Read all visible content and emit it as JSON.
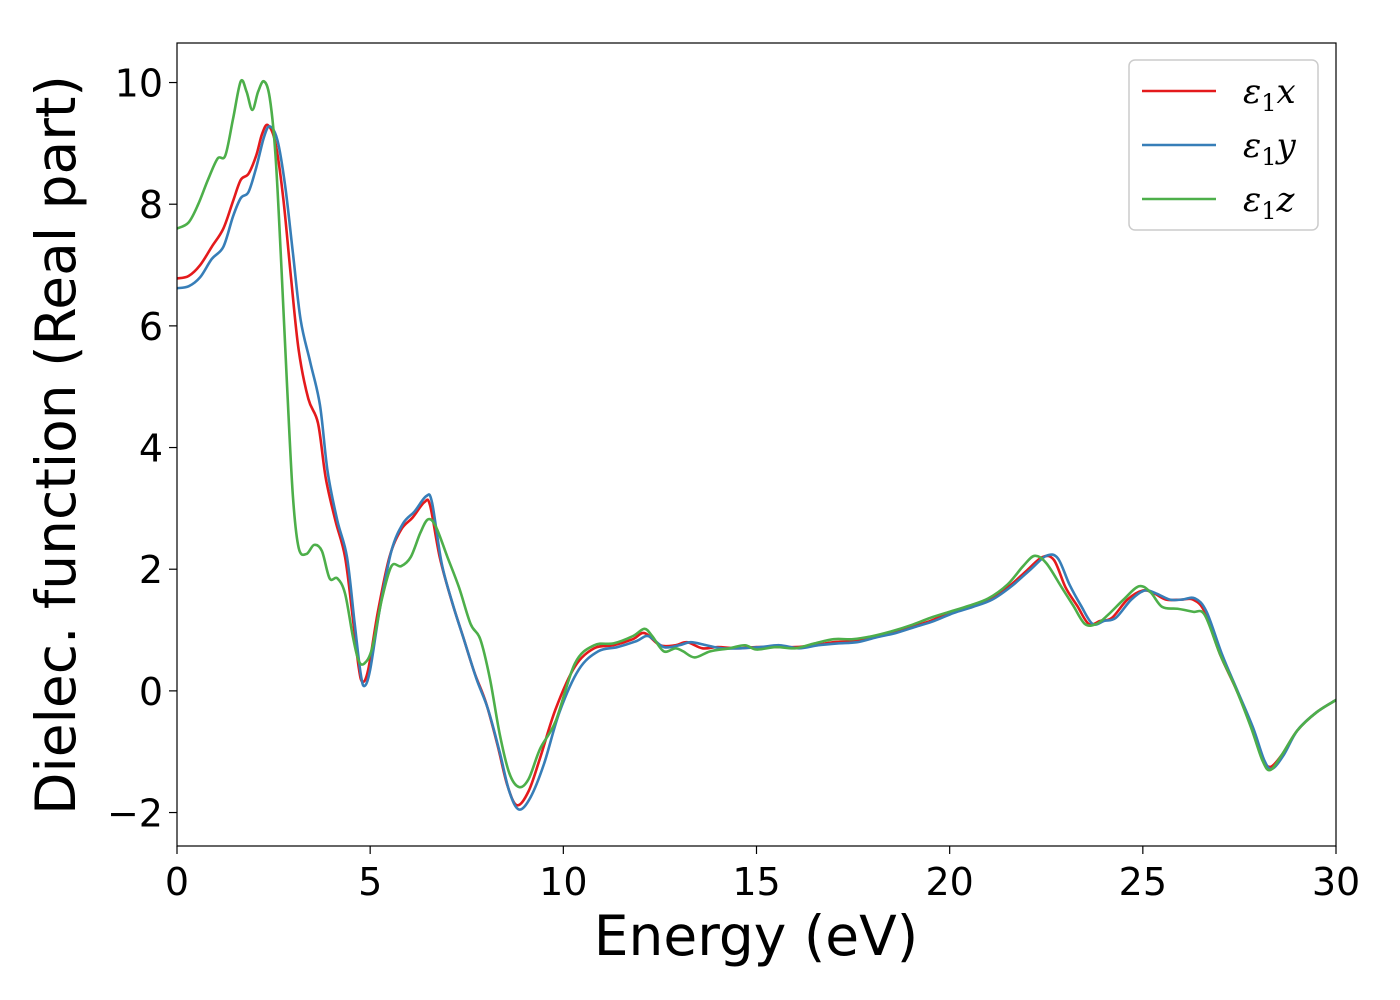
{
  "chart_data": {
    "type": "line",
    "xlabel": "Energy (eV)",
    "ylabel": "Dielec. function (Real part)",
    "xlim": [
      0,
      30
    ],
    "ylim": [
      -2.55,
      10.65
    ],
    "xticks": [
      0,
      5,
      10,
      15,
      20,
      25,
      30
    ],
    "yticks": [
      -2,
      0,
      2,
      4,
      6,
      8,
      10
    ],
    "xtick_labels": [
      "0",
      "5",
      "10",
      "15",
      "20",
      "25",
      "30"
    ],
    "ytick_labels": [
      "−2",
      "0",
      "2",
      "4",
      "6",
      "8",
      "10"
    ],
    "grid": false,
    "legend_position": "top-right",
    "series": [
      {
        "name": "ε₁x",
        "label_main": "ε",
        "label_sub": "1",
        "label_var": "x",
        "color": "#e41a1c",
        "points": [
          [
            0,
            6.78
          ],
          [
            0.3,
            6.82
          ],
          [
            0.6,
            7.0
          ],
          [
            0.9,
            7.3
          ],
          [
            1.2,
            7.6
          ],
          [
            1.45,
            8.05
          ],
          [
            1.65,
            8.4
          ],
          [
            1.85,
            8.5
          ],
          [
            2.05,
            8.8
          ],
          [
            2.2,
            9.15
          ],
          [
            2.35,
            9.3
          ],
          [
            2.55,
            9.0
          ],
          [
            2.75,
            8.1
          ],
          [
            2.95,
            6.8
          ],
          [
            3.15,
            5.6
          ],
          [
            3.4,
            4.8
          ],
          [
            3.65,
            4.4
          ],
          [
            3.85,
            3.5
          ],
          [
            4.1,
            2.8
          ],
          [
            4.35,
            2.2
          ],
          [
            4.55,
            1.2
          ],
          [
            4.7,
            0.4
          ],
          [
            4.8,
            0.15
          ],
          [
            4.95,
            0.35
          ],
          [
            5.2,
            1.3
          ],
          [
            5.5,
            2.2
          ],
          [
            5.8,
            2.65
          ],
          [
            6.1,
            2.85
          ],
          [
            6.4,
            3.1
          ],
          [
            6.55,
            3.05
          ],
          [
            6.8,
            2.2
          ],
          [
            7.1,
            1.5
          ],
          [
            7.4,
            0.9
          ],
          [
            7.7,
            0.3
          ],
          [
            8.0,
            -0.2
          ],
          [
            8.3,
            -0.9
          ],
          [
            8.55,
            -1.55
          ],
          [
            8.8,
            -1.88
          ],
          [
            9.1,
            -1.65
          ],
          [
            9.4,
            -1.1
          ],
          [
            9.8,
            -0.3
          ],
          [
            10.3,
            0.4
          ],
          [
            10.8,
            0.7
          ],
          [
            11.3,
            0.75
          ],
          [
            11.8,
            0.85
          ],
          [
            12.1,
            0.95
          ],
          [
            12.5,
            0.75
          ],
          [
            12.9,
            0.75
          ],
          [
            13.2,
            0.8
          ],
          [
            13.6,
            0.7
          ],
          [
            14.0,
            0.72
          ],
          [
            14.5,
            0.7
          ],
          [
            15.0,
            0.72
          ],
          [
            15.5,
            0.72
          ],
          [
            16.0,
            0.72
          ],
          [
            16.5,
            0.75
          ],
          [
            17.0,
            0.8
          ],
          [
            17.5,
            0.82
          ],
          [
            18.0,
            0.88
          ],
          [
            18.5,
            0.95
          ],
          [
            19.0,
            1.05
          ],
          [
            19.5,
            1.15
          ],
          [
            20.0,
            1.28
          ],
          [
            20.5,
            1.38
          ],
          [
            21.0,
            1.5
          ],
          [
            21.5,
            1.7
          ],
          [
            22.0,
            1.98
          ],
          [
            22.4,
            2.2
          ],
          [
            22.7,
            2.15
          ],
          [
            23.0,
            1.7
          ],
          [
            23.3,
            1.4
          ],
          [
            23.6,
            1.1
          ],
          [
            23.9,
            1.15
          ],
          [
            24.2,
            1.2
          ],
          [
            24.6,
            1.5
          ],
          [
            25.0,
            1.65
          ],
          [
            25.3,
            1.6
          ],
          [
            25.6,
            1.5
          ],
          [
            26.0,
            1.5
          ],
          [
            26.3,
            1.5
          ],
          [
            26.6,
            1.3
          ],
          [
            27.0,
            0.6
          ],
          [
            27.4,
            0.05
          ],
          [
            27.8,
            -0.55
          ],
          [
            28.1,
            -1.1
          ],
          [
            28.3,
            -1.25
          ],
          [
            28.6,
            -1.05
          ],
          [
            29.0,
            -0.65
          ],
          [
            29.5,
            -0.35
          ],
          [
            30.0,
            -0.15
          ]
        ]
      },
      {
        "name": "ε₁y",
        "label_main": "ε",
        "label_sub": "1",
        "label_var": "y",
        "color": "#377eb8",
        "points": [
          [
            0,
            6.62
          ],
          [
            0.3,
            6.65
          ],
          [
            0.6,
            6.8
          ],
          [
            0.9,
            7.1
          ],
          [
            1.2,
            7.3
          ],
          [
            1.45,
            7.8
          ],
          [
            1.65,
            8.1
          ],
          [
            1.85,
            8.2
          ],
          [
            2.05,
            8.6
          ],
          [
            2.25,
            9.1
          ],
          [
            2.4,
            9.28
          ],
          [
            2.6,
            9.05
          ],
          [
            2.8,
            8.3
          ],
          [
            3.0,
            7.2
          ],
          [
            3.2,
            6.1
          ],
          [
            3.45,
            5.4
          ],
          [
            3.7,
            4.7
          ],
          [
            3.9,
            3.6
          ],
          [
            4.15,
            2.8
          ],
          [
            4.4,
            2.2
          ],
          [
            4.6,
            1.1
          ],
          [
            4.75,
            0.3
          ],
          [
            4.85,
            0.08
          ],
          [
            5.0,
            0.35
          ],
          [
            5.25,
            1.35
          ],
          [
            5.55,
            2.3
          ],
          [
            5.85,
            2.75
          ],
          [
            6.15,
            2.95
          ],
          [
            6.45,
            3.2
          ],
          [
            6.6,
            3.1
          ],
          [
            6.85,
            2.1
          ],
          [
            7.15,
            1.4
          ],
          [
            7.45,
            0.8
          ],
          [
            7.75,
            0.2
          ],
          [
            8.05,
            -0.3
          ],
          [
            8.35,
            -1.0
          ],
          [
            8.6,
            -1.65
          ],
          [
            8.85,
            -1.95
          ],
          [
            9.15,
            -1.75
          ],
          [
            9.5,
            -1.2
          ],
          [
            9.9,
            -0.35
          ],
          [
            10.4,
            0.35
          ],
          [
            10.9,
            0.65
          ],
          [
            11.4,
            0.72
          ],
          [
            11.9,
            0.82
          ],
          [
            12.2,
            0.9
          ],
          [
            12.6,
            0.72
          ],
          [
            13.0,
            0.75
          ],
          [
            13.3,
            0.8
          ],
          [
            13.7,
            0.75
          ],
          [
            14.1,
            0.7
          ],
          [
            14.6,
            0.7
          ],
          [
            15.1,
            0.72
          ],
          [
            15.6,
            0.75
          ],
          [
            16.1,
            0.7
          ],
          [
            16.6,
            0.75
          ],
          [
            17.1,
            0.78
          ],
          [
            17.6,
            0.8
          ],
          [
            18.1,
            0.88
          ],
          [
            18.6,
            0.95
          ],
          [
            19.1,
            1.05
          ],
          [
            19.6,
            1.15
          ],
          [
            20.1,
            1.28
          ],
          [
            20.6,
            1.38
          ],
          [
            21.1,
            1.5
          ],
          [
            21.6,
            1.72
          ],
          [
            22.1,
            2.0
          ],
          [
            22.5,
            2.22
          ],
          [
            22.8,
            2.18
          ],
          [
            23.1,
            1.75
          ],
          [
            23.4,
            1.4
          ],
          [
            23.7,
            1.1
          ],
          [
            24.0,
            1.15
          ],
          [
            24.3,
            1.2
          ],
          [
            24.7,
            1.5
          ],
          [
            25.05,
            1.65
          ],
          [
            25.35,
            1.6
          ],
          [
            25.7,
            1.5
          ],
          [
            26.0,
            1.5
          ],
          [
            26.35,
            1.52
          ],
          [
            26.65,
            1.3
          ],
          [
            27.05,
            0.6
          ],
          [
            27.45,
            0.0
          ],
          [
            27.85,
            -0.6
          ],
          [
            28.15,
            -1.15
          ],
          [
            28.35,
            -1.28
          ],
          [
            28.65,
            -1.05
          ],
          [
            29.0,
            -0.65
          ],
          [
            29.5,
            -0.35
          ],
          [
            30.0,
            -0.15
          ]
        ]
      },
      {
        "name": "ε₁z",
        "label_main": "ε",
        "label_sub": "1",
        "label_var": "z",
        "color": "#4daf4a",
        "points": [
          [
            0,
            7.6
          ],
          [
            0.3,
            7.7
          ],
          [
            0.55,
            8.0
          ],
          [
            0.8,
            8.4
          ],
          [
            1.05,
            8.75
          ],
          [
            1.25,
            8.8
          ],
          [
            1.45,
            9.4
          ],
          [
            1.65,
            10.02
          ],
          [
            1.8,
            9.85
          ],
          [
            1.95,
            9.55
          ],
          [
            2.1,
            9.85
          ],
          [
            2.25,
            10.02
          ],
          [
            2.4,
            9.75
          ],
          [
            2.55,
            8.8
          ],
          [
            2.7,
            7.0
          ],
          [
            2.85,
            5.0
          ],
          [
            3.0,
            3.2
          ],
          [
            3.15,
            2.35
          ],
          [
            3.35,
            2.25
          ],
          [
            3.55,
            2.4
          ],
          [
            3.75,
            2.3
          ],
          [
            3.95,
            1.85
          ],
          [
            4.15,
            1.85
          ],
          [
            4.35,
            1.6
          ],
          [
            4.55,
            0.9
          ],
          [
            4.7,
            0.5
          ],
          [
            4.85,
            0.45
          ],
          [
            5.05,
            0.7
          ],
          [
            5.3,
            1.5
          ],
          [
            5.55,
            2.05
          ],
          [
            5.8,
            2.05
          ],
          [
            6.05,
            2.2
          ],
          [
            6.3,
            2.6
          ],
          [
            6.5,
            2.82
          ],
          [
            6.7,
            2.7
          ],
          [
            7.0,
            2.2
          ],
          [
            7.3,
            1.7
          ],
          [
            7.6,
            1.1
          ],
          [
            7.85,
            0.85
          ],
          [
            8.1,
            0.2
          ],
          [
            8.35,
            -0.7
          ],
          [
            8.6,
            -1.35
          ],
          [
            8.85,
            -1.58
          ],
          [
            9.1,
            -1.45
          ],
          [
            9.4,
            -0.95
          ],
          [
            9.8,
            -0.5
          ],
          [
            10.3,
            0.45
          ],
          [
            10.8,
            0.75
          ],
          [
            11.3,
            0.78
          ],
          [
            11.8,
            0.9
          ],
          [
            12.1,
            1.02
          ],
          [
            12.3,
            0.9
          ],
          [
            12.6,
            0.65
          ],
          [
            12.9,
            0.7
          ],
          [
            13.1,
            0.65
          ],
          [
            13.4,
            0.55
          ],
          [
            13.8,
            0.65
          ],
          [
            14.3,
            0.7
          ],
          [
            14.7,
            0.75
          ],
          [
            15.0,
            0.68
          ],
          [
            15.5,
            0.72
          ],
          [
            16.0,
            0.7
          ],
          [
            16.5,
            0.78
          ],
          [
            17.0,
            0.85
          ],
          [
            17.5,
            0.85
          ],
          [
            18.0,
            0.9
          ],
          [
            18.5,
            0.98
          ],
          [
            19.0,
            1.08
          ],
          [
            19.5,
            1.2
          ],
          [
            20.0,
            1.3
          ],
          [
            20.5,
            1.4
          ],
          [
            21.0,
            1.52
          ],
          [
            21.5,
            1.75
          ],
          [
            21.9,
            2.05
          ],
          [
            22.2,
            2.22
          ],
          [
            22.5,
            2.1
          ],
          [
            22.9,
            1.7
          ],
          [
            23.2,
            1.4
          ],
          [
            23.5,
            1.1
          ],
          [
            23.8,
            1.1
          ],
          [
            24.1,
            1.25
          ],
          [
            24.5,
            1.5
          ],
          [
            24.9,
            1.72
          ],
          [
            25.2,
            1.62
          ],
          [
            25.5,
            1.38
          ],
          [
            25.9,
            1.35
          ],
          [
            26.3,
            1.3
          ],
          [
            26.6,
            1.25
          ],
          [
            27.0,
            0.6
          ],
          [
            27.4,
            0.05
          ],
          [
            27.8,
            -0.6
          ],
          [
            28.1,
            -1.15
          ],
          [
            28.3,
            -1.3
          ],
          [
            28.6,
            -1.05
          ],
          [
            29.0,
            -0.65
          ],
          [
            29.5,
            -0.35
          ],
          [
            30.0,
            -0.15
          ]
        ]
      }
    ]
  }
}
